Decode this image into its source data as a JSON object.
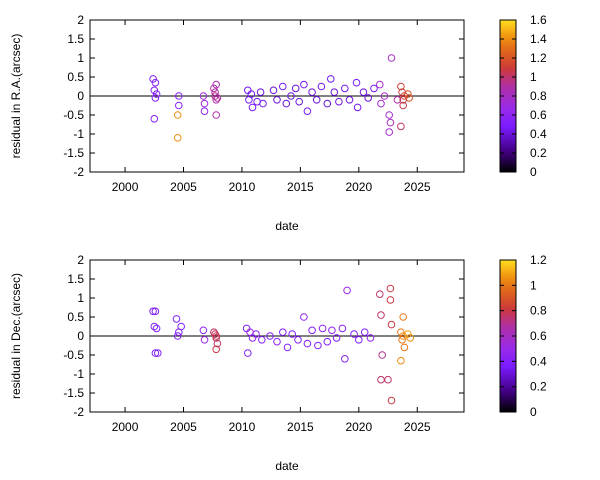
{
  "chart_data": [
    {
      "type": "scatter",
      "title": "",
      "xlabel": "date",
      "ylabel": "residual in R.A.(arcsec)",
      "xlim": [
        1997,
        2029
      ],
      "ylim": [
        -2,
        2
      ],
      "xticks": [
        "2000",
        "2005",
        "2010",
        "2015",
        "2020",
        "2025"
      ],
      "yticks": [
        "-2",
        "-1.5",
        "-1",
        "-0.5",
        "0",
        "0.5",
        "1",
        "1.5",
        "2"
      ],
      "colorbar": {
        "min": 0,
        "max": 1.6,
        "ticks": [
          "0",
          "0.2",
          "0.4",
          "0.6",
          "0.8",
          "1",
          "1.2",
          "1.4",
          "1.6"
        ]
      },
      "zero_line": true,
      "grid": false,
      "points": [
        {
          "x": 2002.4,
          "y": 0.45,
          "c": 0.55
        },
        {
          "x": 2002.5,
          "y": 0.15,
          "c": 0.55
        },
        {
          "x": 2002.6,
          "y": -0.05,
          "c": 0.55
        },
        {
          "x": 2002.6,
          "y": 0.35,
          "c": 0.55
        },
        {
          "x": 2002.7,
          "y": 0.05,
          "c": 0.55
        },
        {
          "x": 2002.5,
          "y": -0.6,
          "c": 0.55
        },
        {
          "x": 2004.6,
          "y": 0.0,
          "c": 0.55
        },
        {
          "x": 2004.6,
          "y": -0.25,
          "c": 0.55
        },
        {
          "x": 2004.5,
          "y": -0.5,
          "c": 1.4
        },
        {
          "x": 2004.5,
          "y": -1.1,
          "c": 1.4
        },
        {
          "x": 2006.7,
          "y": 0.0,
          "c": 0.7
        },
        {
          "x": 2006.8,
          "y": -0.2,
          "c": 0.7
        },
        {
          "x": 2006.8,
          "y": -0.4,
          "c": 0.6
        },
        {
          "x": 2007.6,
          "y": 0.2,
          "c": 0.9
        },
        {
          "x": 2007.7,
          "y": 0.1,
          "c": 0.9
        },
        {
          "x": 2007.7,
          "y": 0.0,
          "c": 0.95
        },
        {
          "x": 2007.8,
          "y": -0.1,
          "c": 0.9
        },
        {
          "x": 2007.8,
          "y": 0.3,
          "c": 0.85
        },
        {
          "x": 2007.9,
          "y": -0.05,
          "c": 0.9
        },
        {
          "x": 2007.8,
          "y": -0.5,
          "c": 0.9
        },
        {
          "x": 2010.5,
          "y": 0.15,
          "c": 0.45
        },
        {
          "x": 2010.6,
          "y": -0.1,
          "c": 0.45
        },
        {
          "x": 2010.8,
          "y": 0.05,
          "c": 0.45
        },
        {
          "x": 2010.9,
          "y": -0.3,
          "c": 0.45
        },
        {
          "x": 2011.3,
          "y": -0.15,
          "c": 0.45
        },
        {
          "x": 2011.6,
          "y": 0.1,
          "c": 0.4
        },
        {
          "x": 2011.8,
          "y": -0.2,
          "c": 0.45
        },
        {
          "x": 2012.7,
          "y": 0.15,
          "c": 0.4
        },
        {
          "x": 2013.0,
          "y": -0.1,
          "c": 0.4
        },
        {
          "x": 2013.5,
          "y": 0.25,
          "c": 0.45
        },
        {
          "x": 2013.8,
          "y": -0.2,
          "c": 0.4
        },
        {
          "x": 2014.2,
          "y": 0.0,
          "c": 0.4
        },
        {
          "x": 2014.6,
          "y": 0.2,
          "c": 0.4
        },
        {
          "x": 2014.9,
          "y": -0.15,
          "c": 0.4
        },
        {
          "x": 2015.3,
          "y": 0.3,
          "c": 0.45
        },
        {
          "x": 2015.6,
          "y": -0.4,
          "c": 0.45
        },
        {
          "x": 2016.0,
          "y": 0.1,
          "c": 0.4
        },
        {
          "x": 2016.4,
          "y": -0.1,
          "c": 0.4
        },
        {
          "x": 2016.8,
          "y": 0.25,
          "c": 0.45
        },
        {
          "x": 2017.3,
          "y": -0.2,
          "c": 0.4
        },
        {
          "x": 2017.6,
          "y": 0.45,
          "c": 0.45
        },
        {
          "x": 2017.9,
          "y": 0.1,
          "c": 0.4
        },
        {
          "x": 2018.3,
          "y": -0.15,
          "c": 0.4
        },
        {
          "x": 2018.8,
          "y": 0.2,
          "c": 0.45
        },
        {
          "x": 2019.2,
          "y": -0.1,
          "c": 0.4
        },
        {
          "x": 2019.8,
          "y": 0.35,
          "c": 0.45
        },
        {
          "x": 2019.9,
          "y": -0.3,
          "c": 0.45
        },
        {
          "x": 2020.4,
          "y": 0.1,
          "c": 0.4
        },
        {
          "x": 2020.8,
          "y": -0.05,
          "c": 0.4
        },
        {
          "x": 2021.3,
          "y": 0.2,
          "c": 0.45
        },
        {
          "x": 2021.8,
          "y": 0.3,
          "c": 0.75
        },
        {
          "x": 2021.9,
          "y": -0.2,
          "c": 0.75
        },
        {
          "x": 2022.2,
          "y": 0.0,
          "c": 0.8
        },
        {
          "x": 2022.6,
          "y": -0.5,
          "c": 0.75
        },
        {
          "x": 2022.7,
          "y": -0.7,
          "c": 0.8
        },
        {
          "x": 2022.6,
          "y": -0.95,
          "c": 0.75
        },
        {
          "x": 2022.8,
          "y": 1.0,
          "c": 0.8
        },
        {
          "x": 2023.3,
          "y": -0.1,
          "c": 0.9
        },
        {
          "x": 2023.6,
          "y": 0.25,
          "c": 1.1
        },
        {
          "x": 2023.7,
          "y": 0.1,
          "c": 1.1
        },
        {
          "x": 2023.8,
          "y": -0.1,
          "c": 1.05
        },
        {
          "x": 2023.9,
          "y": 0.0,
          "c": 1.1
        },
        {
          "x": 2023.8,
          "y": -0.25,
          "c": 1.05
        },
        {
          "x": 2023.6,
          "y": -0.8,
          "c": 1.0
        },
        {
          "x": 2024.2,
          "y": 0.05,
          "c": 1.2
        },
        {
          "x": 2024.3,
          "y": -0.05,
          "c": 1.2
        }
      ]
    },
    {
      "type": "scatter",
      "title": "",
      "xlabel": "date",
      "ylabel": "residual in Dec.(arcsec)",
      "xlim": [
        1997,
        2029
      ],
      "ylim": [
        -2,
        2
      ],
      "xticks": [
        "2000",
        "2005",
        "2010",
        "2015",
        "2020",
        "2025"
      ],
      "yticks": [
        "-2",
        "-1.5",
        "-1",
        "-0.5",
        "0",
        "0.5",
        "1",
        "1.5",
        "2"
      ],
      "colorbar": {
        "min": 0,
        "max": 1.2,
        "ticks": [
          "0",
          "0.2",
          "0.4",
          "0.6",
          "0.8",
          "1",
          "1.2"
        ]
      },
      "zero_line": true,
      "grid": false,
      "points": [
        {
          "x": 2002.4,
          "y": 0.65,
          "c": 0.4
        },
        {
          "x": 2002.6,
          "y": 0.65,
          "c": 0.4
        },
        {
          "x": 2002.5,
          "y": 0.25,
          "c": 0.4
        },
        {
          "x": 2002.7,
          "y": 0.2,
          "c": 0.4
        },
        {
          "x": 2002.6,
          "y": -0.45,
          "c": 0.4
        },
        {
          "x": 2002.8,
          "y": -0.45,
          "c": 0.4
        },
        {
          "x": 2004.4,
          "y": 0.45,
          "c": 0.4
        },
        {
          "x": 2004.6,
          "y": 0.1,
          "c": 0.4
        },
        {
          "x": 2004.5,
          "y": 0.0,
          "c": 0.4
        },
        {
          "x": 2004.8,
          "y": 0.25,
          "c": 0.4
        },
        {
          "x": 2006.7,
          "y": 0.15,
          "c": 0.45
        },
        {
          "x": 2006.8,
          "y": -0.1,
          "c": 0.5
        },
        {
          "x": 2007.6,
          "y": 0.1,
          "c": 0.75
        },
        {
          "x": 2007.7,
          "y": 0.05,
          "c": 0.8
        },
        {
          "x": 2007.8,
          "y": -0.05,
          "c": 0.8
        },
        {
          "x": 2007.8,
          "y": 0.0,
          "c": 0.75
        },
        {
          "x": 2007.9,
          "y": -0.2,
          "c": 0.75
        },
        {
          "x": 2007.8,
          "y": -0.35,
          "c": 0.8
        },
        {
          "x": 2010.4,
          "y": 0.2,
          "c": 0.4
        },
        {
          "x": 2010.5,
          "y": -0.45,
          "c": 0.4
        },
        {
          "x": 2010.7,
          "y": 0.1,
          "c": 0.5
        },
        {
          "x": 2010.9,
          "y": -0.05,
          "c": 0.45
        },
        {
          "x": 2011.2,
          "y": 0.05,
          "c": 0.45
        },
        {
          "x": 2011.7,
          "y": -0.1,
          "c": 0.4
        },
        {
          "x": 2012.4,
          "y": 0.0,
          "c": 0.4
        },
        {
          "x": 2013.0,
          "y": -0.15,
          "c": 0.4
        },
        {
          "x": 2013.5,
          "y": 0.1,
          "c": 0.4
        },
        {
          "x": 2013.9,
          "y": -0.3,
          "c": 0.4
        },
        {
          "x": 2014.3,
          "y": 0.05,
          "c": 0.4
        },
        {
          "x": 2014.8,
          "y": -0.1,
          "c": 0.4
        },
        {
          "x": 2015.3,
          "y": 0.5,
          "c": 0.45
        },
        {
          "x": 2015.6,
          "y": -0.2,
          "c": 0.4
        },
        {
          "x": 2016.0,
          "y": 0.15,
          "c": 0.4
        },
        {
          "x": 2016.5,
          "y": -0.25,
          "c": 0.4
        },
        {
          "x": 2016.9,
          "y": 0.2,
          "c": 0.45
        },
        {
          "x": 2017.3,
          "y": -0.15,
          "c": 0.4
        },
        {
          "x": 2017.7,
          "y": 0.15,
          "c": 0.45
        },
        {
          "x": 2018.1,
          "y": -0.05,
          "c": 0.4
        },
        {
          "x": 2018.6,
          "y": 0.2,
          "c": 0.45
        },
        {
          "x": 2018.8,
          "y": -0.6,
          "c": 0.45
        },
        {
          "x": 2019.0,
          "y": 1.2,
          "c": 0.5
        },
        {
          "x": 2019.6,
          "y": 0.05,
          "c": 0.4
        },
        {
          "x": 2020.0,
          "y": -0.1,
          "c": 0.4
        },
        {
          "x": 2020.5,
          "y": 0.1,
          "c": 0.4
        },
        {
          "x": 2021.0,
          "y": -0.05,
          "c": 0.45
        },
        {
          "x": 2021.8,
          "y": 1.1,
          "c": 0.75
        },
        {
          "x": 2021.9,
          "y": 0.55,
          "c": 0.75
        },
        {
          "x": 2022.0,
          "y": -0.5,
          "c": 0.7
        },
        {
          "x": 2021.9,
          "y": -1.15,
          "c": 0.75
        },
        {
          "x": 2022.5,
          "y": -1.15,
          "c": 0.75
        },
        {
          "x": 2022.7,
          "y": 1.25,
          "c": 0.8
        },
        {
          "x": 2022.7,
          "y": 0.95,
          "c": 0.8
        },
        {
          "x": 2022.8,
          "y": -1.7,
          "c": 0.8
        },
        {
          "x": 2022.8,
          "y": 0.3,
          "c": 0.8
        },
        {
          "x": 2023.6,
          "y": 0.1,
          "c": 1.0
        },
        {
          "x": 2023.7,
          "y": -0.1,
          "c": 1.0
        },
        {
          "x": 2023.8,
          "y": 0.0,
          "c": 1.05
        },
        {
          "x": 2023.8,
          "y": 0.5,
          "c": 1.0
        },
        {
          "x": 2023.9,
          "y": -0.3,
          "c": 1.0
        },
        {
          "x": 2023.6,
          "y": -0.65,
          "c": 1.05
        },
        {
          "x": 2024.2,
          "y": 0.05,
          "c": 1.1
        },
        {
          "x": 2024.4,
          "y": -0.05,
          "c": 1.05
        }
      ]
    }
  ]
}
